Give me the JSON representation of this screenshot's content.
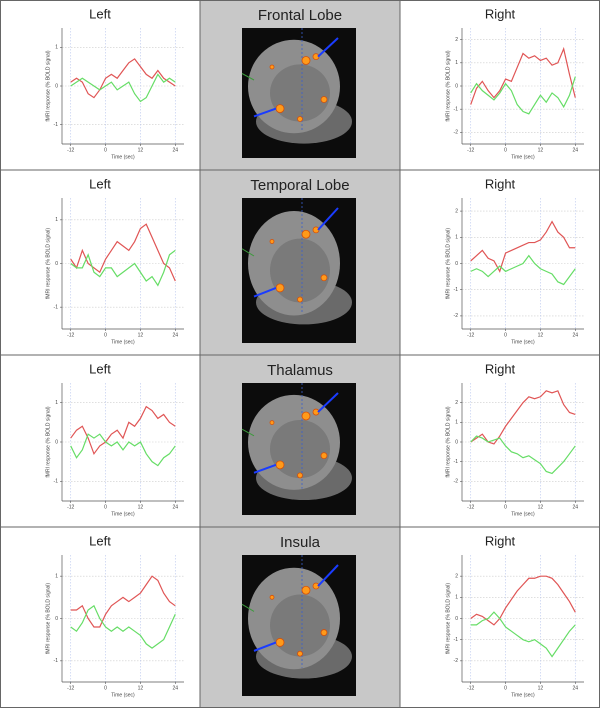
{
  "regions": [
    "Frontal Lobe",
    "Temporal Lobe",
    "Thalamus",
    "Insula"
  ],
  "chart_data": [
    {
      "type": "line",
      "title": "Left",
      "xlabel": "Time (sec)",
      "ylabel": "fMRI response (% BOLD signal)",
      "x": [
        -12,
        -10,
        -8,
        -6,
        -4,
        -2,
        0,
        2,
        4,
        6,
        8,
        10,
        12,
        14,
        16,
        18,
        20,
        22,
        24
      ],
      "xlim": [
        -15,
        27
      ],
      "xticks": [
        -12,
        0,
        12,
        24
      ],
      "ylim": [
        -1.5,
        1.5
      ],
      "yticks": [
        -1,
        0,
        1
      ],
      "grid": true,
      "series": [
        {
          "color": "#e05555",
          "values": [
            0.1,
            0.2,
            0.1,
            -0.2,
            -0.3,
            -0.1,
            0.2,
            0.3,
            0.2,
            0.4,
            0.6,
            0.7,
            0.5,
            0.3,
            0.2,
            0.4,
            0.2,
            0.1,
            0.0
          ]
        },
        {
          "color": "#66dd66",
          "values": [
            0,
            0.1,
            0.2,
            0.1,
            0,
            -0.1,
            0,
            0.1,
            -0.1,
            0,
            0.1,
            -0.2,
            -0.4,
            -0.3,
            0,
            0.3,
            0.1,
            0.2,
            0.1
          ]
        }
      ]
    },
    {
      "type": "line",
      "title": "Right",
      "xlabel": "Time (sec)",
      "ylabel": "fMRI response (% BOLD signal)",
      "x": [
        -12,
        -10,
        -8,
        -6,
        -4,
        -2,
        0,
        2,
        4,
        6,
        8,
        10,
        12,
        14,
        16,
        18,
        20,
        22,
        24
      ],
      "xlim": [
        -15,
        27
      ],
      "xticks": [
        -12,
        0,
        12,
        24
      ],
      "ylim": [
        -2.5,
        2.5
      ],
      "yticks": [
        -2,
        -1,
        0,
        1,
        2
      ],
      "grid": true,
      "series": [
        {
          "color": "#e05555",
          "values": [
            -0.8,
            -0.1,
            0.2,
            -0.2,
            -0.5,
            -0.2,
            0.3,
            0.2,
            0.8,
            1.4,
            1.2,
            1.3,
            1.1,
            1.2,
            0.9,
            1.0,
            1.6,
            0.5,
            -0.5
          ]
        },
        {
          "color": "#66dd66",
          "values": [
            -0.3,
            0.1,
            -0.2,
            -0.4,
            -0.6,
            -0.3,
            0.1,
            -0.2,
            -0.8,
            -1.1,
            -1.2,
            -0.8,
            -0.4,
            -0.7,
            -0.3,
            -0.5,
            -0.9,
            -0.4,
            0.4
          ]
        }
      ]
    },
    {
      "type": "line",
      "title": "Left",
      "xlabel": "Time (sec)",
      "ylabel": "fMRI response (% BOLD signal)",
      "x": [
        -12,
        -10,
        -8,
        -6,
        -4,
        -2,
        0,
        2,
        4,
        6,
        8,
        10,
        12,
        14,
        16,
        18,
        20,
        22,
        24
      ],
      "xlim": [
        -15,
        27
      ],
      "xticks": [
        -12,
        0,
        12,
        24
      ],
      "ylim": [
        -1.5,
        1.5
      ],
      "yticks": [
        -1,
        0,
        1
      ],
      "grid": true,
      "series": [
        {
          "color": "#e05555",
          "values": [
            0.1,
            -0.1,
            0.3,
            0,
            -0.1,
            -0.2,
            0.1,
            0.3,
            0.5,
            0.4,
            0.3,
            0.5,
            0.8,
            0.9,
            0.6,
            0.3,
            0,
            -0.1,
            -0.4
          ]
        },
        {
          "color": "#66dd66",
          "values": [
            0,
            -0.1,
            -0.1,
            0.2,
            -0.2,
            -0.3,
            -0.1,
            -0.1,
            -0.3,
            -0.2,
            -0.1,
            0,
            -0.2,
            -0.4,
            -0.3,
            -0.5,
            -0.2,
            0.2,
            0.3
          ]
        }
      ]
    },
    {
      "type": "line",
      "title": "Right",
      "xlabel": "Time (sec)",
      "ylabel": "fMRI response (% BOLD signal)",
      "x": [
        -12,
        -10,
        -8,
        -6,
        -4,
        -2,
        0,
        2,
        4,
        6,
        8,
        10,
        12,
        14,
        16,
        18,
        20,
        22,
        24
      ],
      "xlim": [
        -15,
        27
      ],
      "xticks": [
        -12,
        0,
        12,
        24
      ],
      "ylim": [
        -2.5,
        2.5
      ],
      "yticks": [
        -2,
        -1,
        0,
        1,
        2
      ],
      "grid": true,
      "series": [
        {
          "color": "#e05555",
          "values": [
            0.1,
            0.3,
            0.5,
            0.2,
            0.1,
            -0.3,
            0.4,
            0.5,
            0.6,
            0.7,
            0.8,
            0.8,
            0.9,
            1.2,
            1.6,
            1.2,
            1.0,
            0.6,
            0.6
          ]
        },
        {
          "color": "#66dd66",
          "values": [
            -0.3,
            -0.2,
            -0.3,
            -0.5,
            -0.3,
            -0.1,
            -0.3,
            -0.2,
            -0.1,
            0,
            0.3,
            0,
            -0.2,
            -0.3,
            -0.4,
            -0.7,
            -0.8,
            -0.5,
            -0.2
          ]
        }
      ]
    },
    {
      "type": "line",
      "title": "Left",
      "xlabel": "Time (sec)",
      "ylabel": "fMRI response (% BOLD signal)",
      "x": [
        -12,
        -10,
        -8,
        -6,
        -4,
        -2,
        0,
        2,
        4,
        6,
        8,
        10,
        12,
        14,
        16,
        18,
        20,
        22,
        24
      ],
      "xlim": [
        -15,
        27
      ],
      "xticks": [
        -12,
        0,
        12,
        24
      ],
      "ylim": [
        -1.5,
        1.5
      ],
      "yticks": [
        -1,
        0,
        1
      ],
      "grid": true,
      "series": [
        {
          "color": "#e05555",
          "values": [
            0.1,
            0.3,
            0.4,
            0.1,
            -0.3,
            -0.1,
            0,
            0.2,
            0.3,
            0.1,
            0.5,
            0.4,
            0.6,
            0.9,
            0.8,
            0.6,
            0.7,
            0.5,
            0.4
          ]
        },
        {
          "color": "#66dd66",
          "values": [
            -0.1,
            -0.4,
            -0.2,
            0.2,
            0.1,
            0.2,
            0,
            -0.1,
            0,
            -0.2,
            0,
            -0.1,
            0,
            -0.3,
            -0.5,
            -0.6,
            -0.4,
            -0.3,
            -0.1
          ]
        }
      ]
    },
    {
      "type": "line",
      "title": "Right",
      "xlabel": "Time (sec)",
      "ylabel": "fMRI response (% BOLD signal)",
      "x": [
        -12,
        -10,
        -8,
        -6,
        -4,
        -2,
        0,
        2,
        4,
        6,
        8,
        10,
        12,
        14,
        16,
        18,
        20,
        22,
        24
      ],
      "xlim": [
        -15,
        27
      ],
      "xticks": [
        -12,
        0,
        12,
        24
      ],
      "ylim": [
        -3,
        3
      ],
      "yticks": [
        -2,
        -1,
        0,
        1,
        2
      ],
      "grid": true,
      "series": [
        {
          "color": "#e05555",
          "values": [
            0,
            0.2,
            0.4,
            0,
            -0.1,
            0.3,
            0.8,
            1.2,
            1.6,
            2.0,
            2.3,
            2.2,
            2.3,
            2.6,
            2.5,
            2.6,
            1.9,
            1.5,
            1.4
          ]
        },
        {
          "color": "#66dd66",
          "values": [
            0,
            0.3,
            0.2,
            0,
            0.1,
            0.2,
            -0.2,
            -0.5,
            -0.6,
            -0.8,
            -0.7,
            -0.9,
            -1.1,
            -1.5,
            -1.6,
            -1.3,
            -1,
            -0.6,
            -0.2
          ]
        }
      ]
    },
    {
      "type": "line",
      "title": "Left",
      "xlabel": "Time (sec)",
      "ylabel": "fMRI response (% BOLD signal)",
      "x": [
        -12,
        -10,
        -8,
        -6,
        -4,
        -2,
        0,
        2,
        4,
        6,
        8,
        10,
        12,
        14,
        16,
        18,
        20,
        22,
        24
      ],
      "xlim": [
        -15,
        27
      ],
      "xticks": [
        -12,
        0,
        12,
        24
      ],
      "ylim": [
        -1.5,
        1.5
      ],
      "yticks": [
        -1,
        0,
        1
      ],
      "grid": true,
      "series": [
        {
          "color": "#e05555",
          "values": [
            0.2,
            0.2,
            0.3,
            0,
            -0.2,
            -0.2,
            0.1,
            0.3,
            0.4,
            0.5,
            0.4,
            0.5,
            0.6,
            0.8,
            1.0,
            0.9,
            0.6,
            0.4,
            0.3
          ]
        },
        {
          "color": "#66dd66",
          "values": [
            -0.2,
            -0.3,
            -0.1,
            0.2,
            0.3,
            0,
            -0.2,
            -0.3,
            -0.2,
            -0.3,
            -0.2,
            -0.3,
            -0.4,
            -0.6,
            -0.7,
            -0.6,
            -0.5,
            -0.2,
            0.1
          ]
        }
      ]
    },
    {
      "type": "line",
      "title": "Right",
      "xlabel": "Time (sec)",
      "ylabel": "fMRI response (% BOLD signal)",
      "x": [
        -12,
        -10,
        -8,
        -6,
        -4,
        -2,
        0,
        2,
        4,
        6,
        8,
        10,
        12,
        14,
        16,
        18,
        20,
        22,
        24
      ],
      "xlim": [
        -15,
        27
      ],
      "xticks": [
        -12,
        0,
        12,
        24
      ],
      "ylim": [
        -3,
        3
      ],
      "yticks": [
        -2,
        -1,
        0,
        1,
        2
      ],
      "grid": true,
      "series": [
        {
          "color": "#e05555",
          "values": [
            0,
            0.2,
            0.1,
            -0.1,
            -0.3,
            0,
            0.5,
            0.9,
            1.3,
            1.6,
            1.9,
            1.9,
            2.0,
            2.0,
            1.9,
            1.6,
            1.2,
            0.8,
            0.3
          ]
        },
        {
          "color": "#66dd66",
          "values": [
            -0.3,
            -0.3,
            -0.1,
            0,
            0.3,
            0,
            -0.4,
            -0.6,
            -0.8,
            -1,
            -1.1,
            -1,
            -1.2,
            -1.4,
            -1.8,
            -1.4,
            -1,
            -0.6,
            -0.3
          ]
        }
      ]
    }
  ]
}
